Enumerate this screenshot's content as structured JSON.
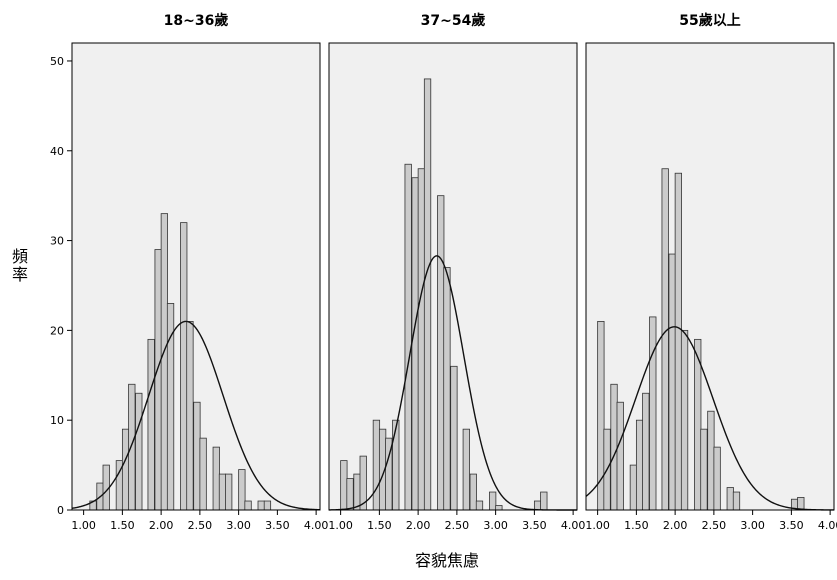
{
  "chart_data": {
    "type": "bar",
    "layout": "histogram panels with normal curve",
    "xlabel": "容貌焦慮",
    "ylabel": "頻率",
    "ylim": [
      0,
      52
    ],
    "y_ticks": [
      "0",
      "10",
      "20",
      "30",
      "40",
      "50"
    ],
    "xlim": [
      0.85,
      4.05
    ],
    "x_ticks": [
      "1.00",
      "1.50",
      "2.00",
      "2.50",
      "3.00",
      "3.50",
      "4.00"
    ],
    "grid": false,
    "bin_width": 0.0833,
    "colors": {
      "plot_bg": "#f0f0f0",
      "bar_fill": "#cbcbcb",
      "bar_stroke": "#333333",
      "curve": "#111111"
    },
    "panels": [
      {
        "title": "18~36歲",
        "bin_starts": [
          1.08,
          1.17,
          1.25,
          1.33,
          1.42,
          1.5,
          1.58,
          1.67,
          1.75,
          1.83,
          1.92,
          2.0,
          2.08,
          2.17,
          2.25,
          2.33,
          2.42,
          2.5,
          2.58,
          2.67,
          2.75,
          2.83,
          2.92,
          3.0,
          3.08,
          3.17,
          3.25,
          3.33,
          3.42,
          3.5,
          3.58,
          3.67,
          3.75,
          3.83
        ],
        "values": [
          1,
          3,
          5,
          0,
          5.5,
          9,
          14,
          13,
          0,
          19,
          29,
          33,
          23,
          0,
          32,
          21,
          12,
          8,
          0,
          7,
          4,
          4,
          0,
          4.5,
          1,
          0,
          1,
          1,
          0,
          0,
          0,
          0,
          0,
          0
        ],
        "curve_mean": 2.32,
        "curve_sd": 0.48,
        "curve_peak": 21
      },
      {
        "title": "37~54歲",
        "bin_starts": [
          1.0,
          1.08,
          1.17,
          1.25,
          1.33,
          1.42,
          1.5,
          1.58,
          1.67,
          1.75,
          1.83,
          1.92,
          2.0,
          2.08,
          2.17,
          2.25,
          2.33,
          2.42,
          2.5,
          2.58,
          2.67,
          2.75,
          2.83,
          2.92,
          3.0,
          3.08,
          3.17,
          3.25,
          3.33,
          3.42,
          3.5,
          3.58,
          3.67
        ],
        "values": [
          5.5,
          3.5,
          4,
          6,
          0,
          10,
          9,
          8,
          10,
          0,
          38.5,
          37,
          38,
          48,
          0,
          35,
          27,
          16,
          0,
          9,
          4,
          1,
          0,
          2,
          0.5,
          0,
          0,
          0,
          0,
          0,
          1,
          2,
          0
        ],
        "curve_mean": 2.24,
        "curve_sd": 0.35,
        "curve_peak": 28.3
      },
      {
        "title": "55歲以上",
        "bin_starts": [
          1.0,
          1.08,
          1.17,
          1.25,
          1.33,
          1.42,
          1.5,
          1.58,
          1.67,
          1.75,
          1.83,
          1.92,
          2.0,
          2.08,
          2.17,
          2.25,
          2.33,
          2.42,
          2.5,
          2.58,
          2.67,
          2.75,
          2.83,
          2.92,
          3.0,
          3.08,
          3.17,
          3.25,
          3.33,
          3.42,
          3.5,
          3.58,
          3.67
        ],
        "values": [
          21,
          9,
          14,
          12,
          0,
          5,
          10,
          13,
          21.5,
          0,
          38,
          28.5,
          37.5,
          20,
          0,
          19,
          9,
          11,
          7,
          0,
          2.5,
          2,
          0,
          0,
          0,
          0,
          0,
          0,
          0,
          0,
          1.2,
          1.4,
          0
        ],
        "curve_mean": 1.99,
        "curve_sd": 0.5,
        "curve_peak": 20.4
      }
    ]
  }
}
